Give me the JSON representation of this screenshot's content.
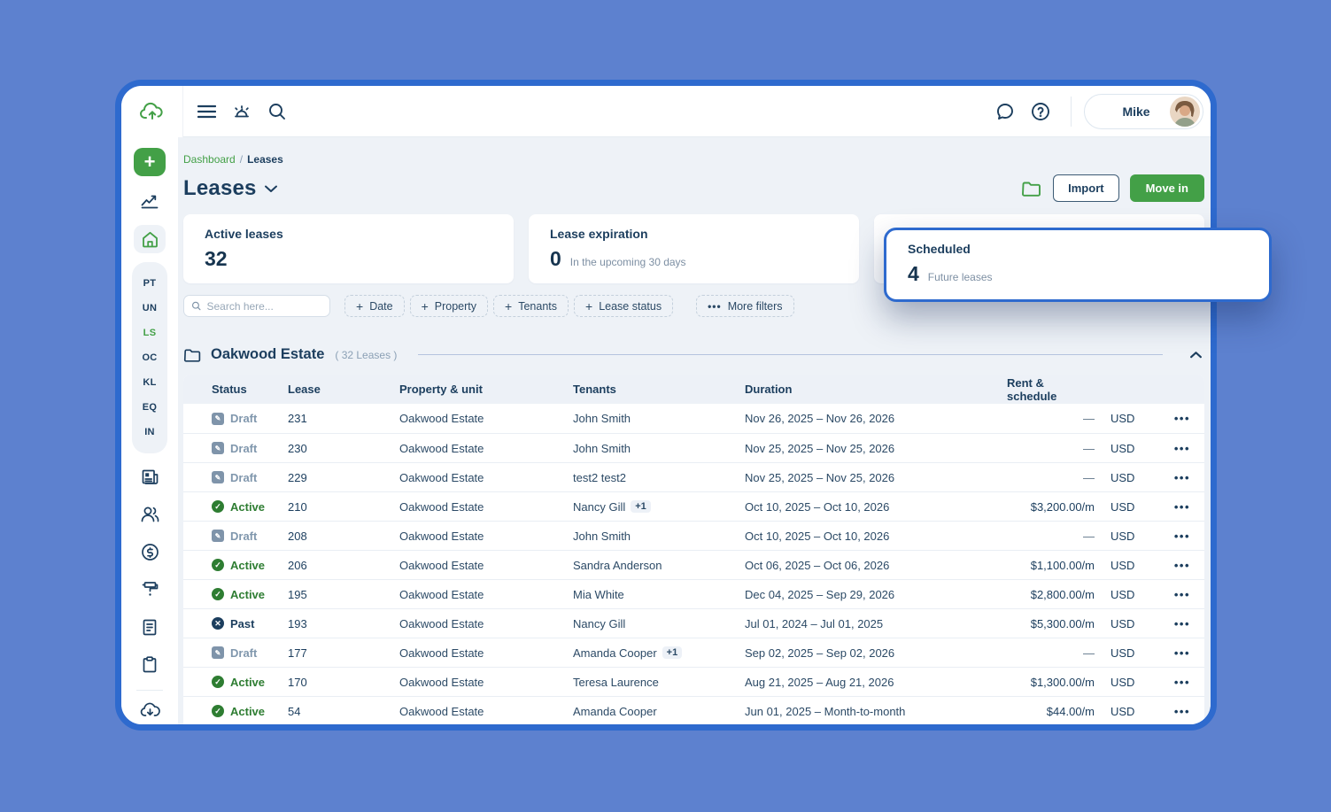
{
  "colors": {
    "accent_green": "#43a047",
    "navy": "#1c3e5e",
    "frame_blue": "#2e6ace",
    "background_blue": "#5d81cf",
    "active_status_green": "#2e7d32",
    "draft_status_gray": "#8097ad"
  },
  "topbar": {
    "user_name": "Mike"
  },
  "sidebar": {
    "shortcut_labels": [
      "PT",
      "UN",
      "LS",
      "OC",
      "KL",
      "EQ",
      "IN"
    ],
    "active_shortcut": "LS"
  },
  "breadcrumb": {
    "parent": "Dashboard",
    "separator": "/",
    "current": "Leases"
  },
  "page": {
    "title": "Leases",
    "import_label": "Import",
    "move_in_label": "Move in"
  },
  "stats": {
    "active": {
      "label": "Active leases",
      "value": "32"
    },
    "expiration": {
      "label": "Lease expiration",
      "value": "0",
      "note": "In the upcoming 30 days"
    },
    "scheduled": {
      "label": "Scheduled",
      "value": "4",
      "note": "Future leases"
    }
  },
  "filters": {
    "search_placeholder": "Search here...",
    "chips": [
      "Date",
      "Property",
      "Tenants",
      "Lease status"
    ],
    "more_label": "More filters"
  },
  "group": {
    "name": "Oakwood Estate",
    "count": "( 32 Leases )"
  },
  "table": {
    "columns": [
      "Status",
      "Lease",
      "Property & unit",
      "Tenants",
      "Duration",
      "Rent & schedule"
    ],
    "rows": [
      {
        "status": "Draft",
        "lease": "231",
        "property": "Oakwood Estate",
        "tenants": "John Smith",
        "tenants_extra": "",
        "duration": "Nov 26, 2025 – Nov 26, 2026",
        "rent": "—",
        "currency": "USD"
      },
      {
        "status": "Draft",
        "lease": "230",
        "property": "Oakwood Estate",
        "tenants": "John Smith",
        "tenants_extra": "",
        "duration": "Nov 25, 2025 – Nov 25, 2026",
        "rent": "—",
        "currency": "USD"
      },
      {
        "status": "Draft",
        "lease": "229",
        "property": "Oakwood Estate",
        "tenants": "test2 test2",
        "tenants_extra": "",
        "duration": "Nov 25, 2025 – Nov 25, 2026",
        "rent": "—",
        "currency": "USD"
      },
      {
        "status": "Active",
        "lease": "210",
        "property": "Oakwood Estate",
        "tenants": "Nancy Gill",
        "tenants_extra": "+1",
        "duration": "Oct 10, 2025 – Oct 10, 2026",
        "rent": "$3,200.00/m",
        "currency": "USD"
      },
      {
        "status": "Draft",
        "lease": "208",
        "property": "Oakwood Estate",
        "tenants": "John Smith",
        "tenants_extra": "",
        "duration": "Oct 10, 2025 – Oct 10, 2026",
        "rent": "—",
        "currency": "USD"
      },
      {
        "status": "Active",
        "lease": "206",
        "property": "Oakwood Estate",
        "tenants": "Sandra Anderson",
        "tenants_extra": "",
        "duration": "Oct 06, 2025 – Oct 06, 2026",
        "rent": "$1,100.00/m",
        "currency": "USD"
      },
      {
        "status": "Active",
        "lease": "195",
        "property": "Oakwood Estate",
        "tenants": "Mia White",
        "tenants_extra": "",
        "duration": "Dec 04, 2025 – Sep 29, 2026",
        "rent": "$2,800.00/m",
        "currency": "USD"
      },
      {
        "status": "Past",
        "lease": "193",
        "property": "Oakwood Estate",
        "tenants": "Nancy Gill",
        "tenants_extra": "",
        "duration": "Jul 01, 2024 – Jul 01, 2025",
        "rent": "$5,300.00/m",
        "currency": "USD"
      },
      {
        "status": "Draft",
        "lease": "177",
        "property": "Oakwood Estate",
        "tenants": "Amanda Cooper",
        "tenants_extra": "+1",
        "duration": "Sep 02, 2025 – Sep 02, 2026",
        "rent": "—",
        "currency": "USD"
      },
      {
        "status": "Active",
        "lease": "170",
        "property": "Oakwood Estate",
        "tenants": "Teresa Laurence",
        "tenants_extra": "",
        "duration": "Aug 21, 2025 – Aug 21, 2026",
        "rent": "$1,300.00/m",
        "currency": "USD"
      },
      {
        "status": "Active",
        "lease": "54",
        "property": "Oakwood Estate",
        "tenants": "Amanda Cooper",
        "tenants_extra": "",
        "duration": "Jun 01, 2025 – Month-to-month",
        "rent": "$44.00/m",
        "currency": "USD"
      }
    ]
  }
}
